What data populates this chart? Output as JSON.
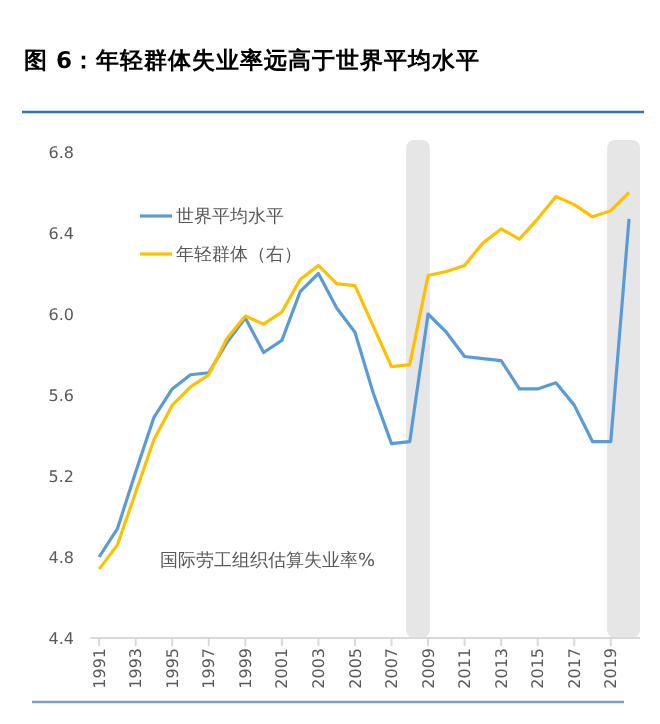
{
  "chart_data": {
    "type": "line",
    "title": "图 6：年轻群体失业率远高于世界平均水平",
    "x": [
      1991,
      1992,
      1993,
      1994,
      1995,
      1996,
      1997,
      1998,
      1999,
      2000,
      2001,
      2002,
      2003,
      2004,
      2005,
      2006,
      2007,
      2008,
      2009,
      2010,
      2011,
      2012,
      2013,
      2014,
      2015,
      2016,
      2017,
      2018,
      2019,
      2020
    ],
    "series": [
      {
        "name": "世界平均水平",
        "color": "#5b9bd5",
        "values": [
          4.8,
          4.94,
          5.22,
          5.49,
          5.63,
          5.7,
          5.71,
          5.86,
          5.98,
          5.81,
          5.87,
          6.11,
          6.2,
          6.03,
          5.91,
          5.61,
          5.36,
          5.37,
          6.0,
          5.91,
          5.79,
          5.78,
          5.77,
          5.63,
          5.63,
          5.66,
          5.55,
          5.37,
          5.37,
          6.47
        ]
      },
      {
        "name": "年轻群体（右）",
        "color": "#ffc000",
        "values": [
          4.74,
          4.86,
          5.12,
          5.38,
          5.55,
          5.64,
          5.7,
          5.88,
          5.99,
          5.95,
          6.01,
          6.17,
          6.24,
          6.15,
          6.14,
          5.94,
          5.74,
          5.75,
          6.19,
          6.21,
          6.24,
          6.35,
          6.42,
          6.37,
          6.47,
          6.58,
          6.54,
          6.48,
          6.51,
          6.6
        ]
      }
    ],
    "xlim": [
      1990.5,
      2020.6
    ],
    "xticks": [
      1991,
      1993,
      1995,
      1997,
      1999,
      2001,
      2003,
      2005,
      2007,
      2009,
      2011,
      2013,
      2015,
      2017,
      2019
    ],
    "ylim": [
      4.4,
      6.8
    ],
    "yticks": [
      {
        "value": 4.4,
        "label": "4.4"
      },
      {
        "value": 4.8,
        "label": "4.8"
      },
      {
        "value": 5.2,
        "label": "5.2"
      },
      {
        "value": 5.6,
        "label": "5.6"
      },
      {
        "value": 6.0,
        "label": "6.0"
      },
      {
        "value": 6.4,
        "label": "6.4"
      },
      {
        "value": 6.8,
        "label": "6.8"
      }
    ],
    "bands": [
      {
        "axis": "x",
        "from": 2007.8,
        "to": 2009.1,
        "color": "#e7e6e6"
      },
      {
        "axis": "x",
        "from": 2018.8,
        "to": 2020.6,
        "color": "#e7e6e6"
      }
    ],
    "annotations": [
      "国际劳工组织估算失业率%"
    ],
    "legend": "top left",
    "marker": "none",
    "line_style": "solid"
  }
}
